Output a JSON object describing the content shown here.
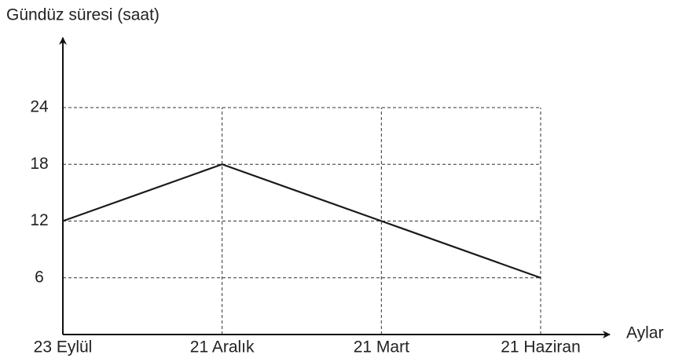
{
  "chart_data": {
    "type": "line",
    "y_label": "Gündüz süresi (saat)",
    "x_label": "Aylar",
    "categories": [
      "23 Eylül",
      "21 Aralık",
      "21 Mart",
      "21 Haziran"
    ],
    "values": [
      12,
      18,
      12,
      6
    ],
    "color": "#1a1a1a",
    "ylim": [
      0,
      24
    ],
    "yticks": [
      6,
      12,
      18,
      24
    ],
    "grid": true
  }
}
